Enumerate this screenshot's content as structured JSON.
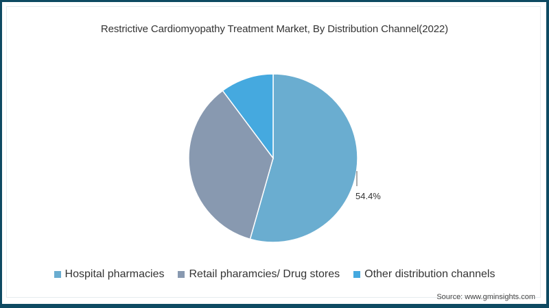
{
  "chart_data": {
    "type": "pie",
    "title": "Restrictive Cardiomyopathy Treatment Market, By Distribution Channel(2022)",
    "categories": [
      "Hospital pharmacies",
      "Retail pharamcies/ Drug stores",
      "Other distribution channels"
    ],
    "values": [
      54.4,
      35.4,
      10.2
    ],
    "colors": [
      "#6aadd0",
      "#8899b0",
      "#45a9df"
    ],
    "data_labels": [
      {
        "category": "Hospital pharmacies",
        "text": "54.4%"
      }
    ],
    "start_angle_deg": 0,
    "direction": "clockwise",
    "legend_position": "bottom"
  },
  "title": "Restrictive Cardiomyopathy Treatment Market, By Distribution Channel(2022)",
  "legend": [
    {
      "label": "Hospital pharmacies",
      "color": "#6aadd0"
    },
    {
      "label": "Retail pharamcies/ Drug stores",
      "color": "#8899b0"
    },
    {
      "label": "Other distribution channels",
      "color": "#45a9df"
    }
  ],
  "data_label": "54.4%",
  "source": "Source: www.gminsights.com",
  "frame_color": "#0e4a62"
}
